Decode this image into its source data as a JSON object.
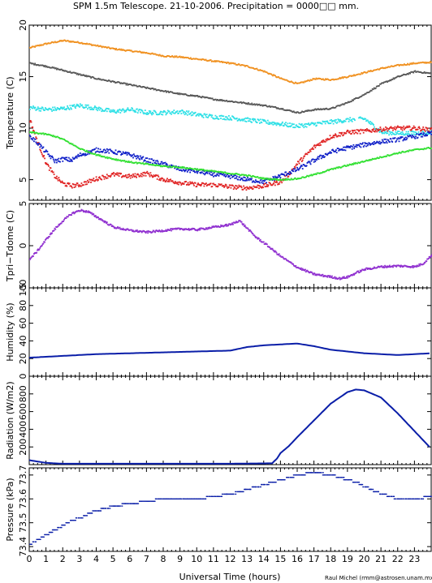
{
  "figure": {
    "title": "SPM 1.5m Telescope. 21-10-2006. Precipitation = 0000□□ mm.",
    "xlabel": "Universal Time (hours)",
    "credit": "Raul Michel (rmm@astrosen.unam.mx)",
    "colors": {
      "orange": "#f0901e",
      "gray": "#555555",
      "cyan": "#2ee0e6",
      "red": "#e02424",
      "blue": "#1020c8",
      "green": "#30e030",
      "purple": "#9030d0",
      "navy": "#0a1ea8"
    }
  },
  "chart_data": [
    {
      "type": "scatter",
      "panel": "temperature",
      "ylabel": "Temperature (C)",
      "x_range": [
        0,
        24
      ],
      "ylim": [
        3,
        20
      ],
      "yticks": [
        5,
        10,
        15,
        20
      ],
      "x_ticks": [
        "0",
        "1",
        "2",
        "3",
        "4",
        "5",
        "6",
        "7",
        "8",
        "9",
        "10",
        "11",
        "12",
        "13",
        "14",
        "15",
        "16",
        "17",
        "18",
        "19",
        "20",
        "21",
        "22",
        "23"
      ],
      "series": [
        {
          "color_key": "orange",
          "x": [
            0,
            1,
            2,
            3,
            4,
            5,
            6,
            7,
            8,
            9,
            10,
            11,
            12,
            13,
            14,
            15,
            16,
            17,
            18,
            19,
            20,
            21,
            22,
            23,
            24
          ],
          "y": [
            17.8,
            18.2,
            18.5,
            18.3,
            18.0,
            17.7,
            17.5,
            17.3,
            17.0,
            16.9,
            16.7,
            16.5,
            16.3,
            16.0,
            15.5,
            14.8,
            14.3,
            14.8,
            14.7,
            15.0,
            15.4,
            15.8,
            16.1,
            16.3,
            16.4
          ]
        },
        {
          "color_key": "gray",
          "x": [
            0,
            1,
            2,
            3,
            4,
            5,
            6,
            7,
            8,
            9,
            10,
            11,
            12,
            13,
            14,
            15,
            16,
            17,
            18,
            19,
            20,
            21,
            22,
            23,
            24
          ],
          "y": [
            16.3,
            16.0,
            15.6,
            15.2,
            14.8,
            14.5,
            14.2,
            13.9,
            13.6,
            13.3,
            13.1,
            12.8,
            12.6,
            12.4,
            12.2,
            11.9,
            11.5,
            11.8,
            11.9,
            12.5,
            13.3,
            14.3,
            15.0,
            15.5,
            15.3
          ]
        },
        {
          "color_key": "cyan",
          "x": [
            0,
            1,
            2,
            3,
            4,
            5,
            6,
            7,
            8,
            9,
            10,
            11,
            12,
            13,
            14,
            15,
            16,
            17,
            18,
            19,
            20,
            21,
            22,
            23,
            24
          ],
          "y": [
            12.0,
            11.8,
            11.9,
            12.2,
            11.9,
            11.6,
            11.8,
            11.5,
            11.5,
            11.6,
            11.3,
            11.1,
            11.0,
            10.8,
            10.6,
            10.4,
            10.2,
            10.4,
            10.6,
            10.8,
            10.9,
            9.6,
            9.5,
            9.5,
            9.6
          ]
        },
        {
          "color_key": "red",
          "x": [
            0,
            0.5,
            1,
            1.5,
            2,
            2.5,
            3,
            3.5,
            4,
            5,
            6,
            7,
            8,
            9,
            10,
            11,
            12,
            13,
            14,
            15,
            15.5,
            16,
            17,
            18,
            19,
            20,
            21,
            22,
            23,
            24
          ],
          "y": [
            10.8,
            8.5,
            6.5,
            5.3,
            4.6,
            4.4,
            4.5,
            4.8,
            5.1,
            5.5,
            5.3,
            5.6,
            5.0,
            4.7,
            4.5,
            4.5,
            4.3,
            4.2,
            4.4,
            4.8,
            5.6,
            6.6,
            8.2,
            9.2,
            9.6,
            9.7,
            9.9,
            10.0,
            10.0,
            9.8
          ]
        },
        {
          "color_key": "blue",
          "x": [
            0,
            0.5,
            1,
            1.5,
            2,
            2.5,
            3,
            4,
            5,
            6,
            7,
            8,
            9,
            10,
            11,
            12,
            13,
            14,
            15,
            16,
            17,
            18,
            19,
            20,
            21,
            22,
            23,
            24
          ],
          "y": [
            9.2,
            8.5,
            7.6,
            6.8,
            7.0,
            6.9,
            7.4,
            7.9,
            7.7,
            7.4,
            6.9,
            6.5,
            6.0,
            5.8,
            5.5,
            5.3,
            5.0,
            4.8,
            5.4,
            6.0,
            6.9,
            7.7,
            8.1,
            8.4,
            8.7,
            8.9,
            9.2,
            9.5
          ]
        },
        {
          "color_key": "green",
          "x": [
            0,
            0.5,
            1,
            1.5,
            2,
            3,
            4,
            5,
            6,
            7,
            8,
            9,
            10,
            11,
            12,
            13,
            14,
            15,
            16,
            17,
            18,
            19,
            20,
            21,
            22,
            23,
            24
          ],
          "y": [
            9.6,
            9.5,
            9.4,
            9.2,
            8.9,
            8.0,
            7.4,
            7.0,
            6.7,
            6.5,
            6.3,
            6.2,
            6.0,
            5.8,
            5.6,
            5.4,
            5.1,
            5.0,
            5.1,
            5.5,
            6.0,
            6.4,
            6.8,
            7.2,
            7.6,
            7.9,
            8.1
          ]
        }
      ]
    },
    {
      "type": "scatter",
      "panel": "tpri-tdome",
      "ylabel": "Tpri−Tdome (C)",
      "x_range": [
        0,
        24
      ],
      "ylim": [
        -5,
        5
      ],
      "yticks": [
        -5,
        0,
        5
      ],
      "series": [
        {
          "color_key": "purple",
          "x": [
            0,
            0.5,
            1,
            1.5,
            2,
            2.5,
            3,
            3.5,
            4,
            4.5,
            5,
            6,
            7,
            8,
            9,
            10,
            11,
            12,
            12.5,
            13,
            13.5,
            14,
            15,
            16,
            17,
            18,
            18.5,
            19,
            19.5,
            20,
            21,
            22,
            23,
            23.5,
            24
          ],
          "y": [
            -1.6,
            -0.5,
            0.8,
            2.0,
            3.0,
            3.8,
            4.2,
            4.0,
            3.4,
            2.8,
            2.2,
            1.8,
            1.6,
            1.8,
            2.0,
            1.9,
            2.2,
            2.5,
            3.0,
            2.0,
            1.0,
            0.3,
            -1.3,
            -2.6,
            -3.4,
            -3.7,
            -3.9,
            -3.7,
            -3.2,
            -2.8,
            -2.5,
            -2.4,
            -2.5,
            -2.1,
            -1.1
          ]
        }
      ]
    },
    {
      "type": "line",
      "panel": "humidity",
      "ylabel": "Humidity (%)",
      "x_range": [
        0,
        24
      ],
      "ylim": [
        0,
        100
      ],
      "yticks": [
        0,
        20,
        40,
        60,
        80,
        100
      ],
      "series": [
        {
          "color_key": "navy",
          "x": [
            0,
            2,
            4,
            6,
            8,
            10,
            12,
            13,
            14,
            15,
            16,
            17,
            18,
            20,
            22,
            24
          ],
          "y": [
            21,
            23,
            25,
            26,
            27,
            28,
            29,
            33,
            35,
            36,
            37,
            34,
            30,
            26,
            24,
            26
          ]
        }
      ]
    },
    {
      "type": "line",
      "panel": "radiation",
      "ylabel": "Radiation (W/m2)",
      "x_range": [
        0,
        24
      ],
      "ylim": [
        0,
        1000
      ],
      "yticks": [
        200,
        400,
        600,
        800
      ],
      "series": [
        {
          "color_key": "navy",
          "x": [
            0,
            1,
            2,
            4,
            8,
            12,
            14.5,
            14.8,
            15,
            15.5,
            16,
            17,
            18,
            19,
            19.5,
            20,
            21,
            22,
            23,
            24
          ],
          "y": [
            50,
            20,
            10,
            10,
            10,
            10,
            15,
            70,
            130,
            210,
            310,
            500,
            690,
            820,
            850,
            840,
            760,
            580,
            380,
            180
          ]
        }
      ]
    },
    {
      "type": "scatter",
      "panel": "pressure",
      "ylabel": "Pressure (kPa)",
      "x_range": [
        0,
        24
      ],
      "ylim": [
        73.38,
        73.73
      ],
      "yticks": [
        73.4,
        73.5,
        73.6,
        73.7
      ],
      "ytick_labels": [
        "73.4",
        "73.5",
        "73.6",
        "73.7"
      ],
      "series": [
        {
          "color_key": "navy",
          "x": [
            0,
            0.5,
            1,
            1.5,
            2,
            2.5,
            3,
            3.5,
            4,
            5,
            6,
            7,
            8,
            9,
            10,
            11,
            12,
            13,
            14,
            15,
            16,
            17,
            18,
            19,
            19.5,
            20,
            21,
            22,
            23,
            24
          ],
          "y": [
            73.41,
            73.43,
            73.45,
            73.47,
            73.49,
            73.51,
            73.52,
            73.54,
            73.55,
            73.57,
            73.58,
            73.59,
            73.6,
            73.6,
            73.6,
            73.61,
            73.62,
            73.64,
            73.66,
            73.68,
            73.7,
            73.71,
            73.7,
            73.68,
            73.67,
            73.65,
            73.62,
            73.6,
            73.6,
            73.61
          ]
        }
      ]
    }
  ]
}
